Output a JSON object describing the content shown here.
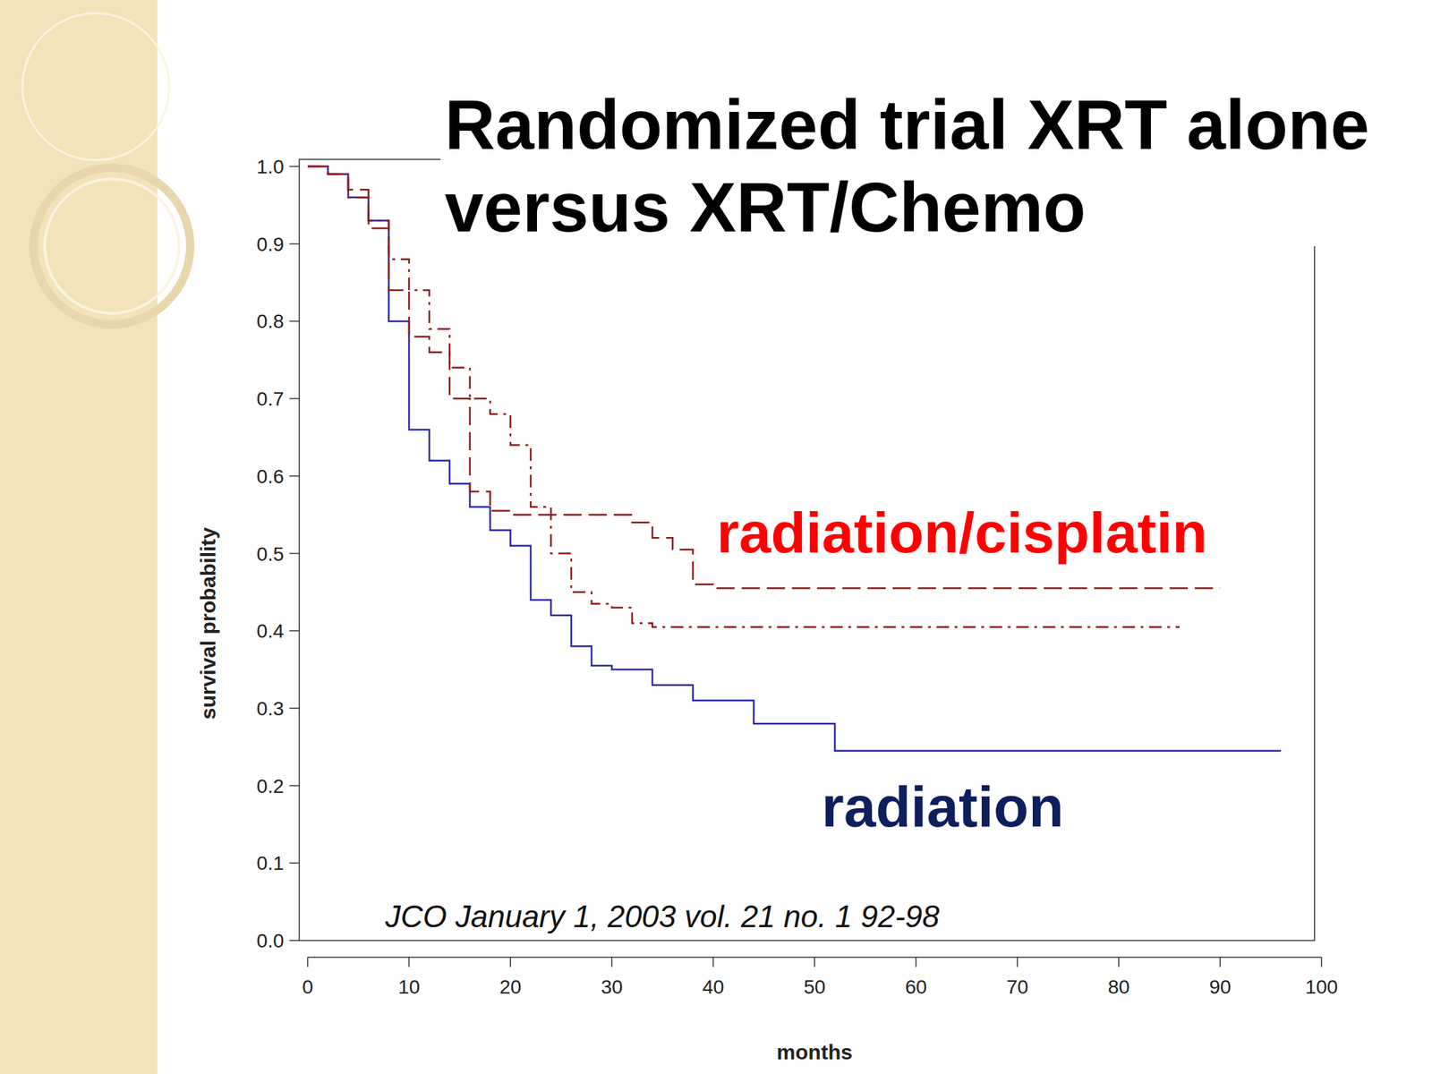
{
  "chart_data": {
    "type": "line",
    "title": "Randomized trial XRT alone versus XRT/Chemo",
    "x_label": "months",
    "y_label": "survival probability",
    "source": "JCO January 1, 2003 vol. 21 no. 1 92-98",
    "annotations": [
      {
        "text": "radiation/cisplatin",
        "color": "#ff0000"
      },
      {
        "text": "radiation",
        "color": "#0d1f5c"
      }
    ],
    "xlim": [
      0,
      100
    ],
    "ylim": [
      0,
      1
    ],
    "xticks": [
      0,
      10,
      20,
      30,
      40,
      50,
      60,
      70,
      80,
      90,
      100
    ],
    "yticks": [
      {
        "value": 0,
        "label": "0.0"
      },
      0.1,
      0.2,
      0.3,
      0.4,
      0.5,
      0.6,
      0.7,
      0.8,
      0.9,
      {
        "value": 1,
        "label": "1.0"
      }
    ],
    "grid": false,
    "x": [
      0,
      2,
      4,
      6,
      8,
      10,
      12,
      14,
      16,
      18,
      20,
      22,
      24,
      26,
      28,
      30,
      32,
      34,
      36,
      38,
      40,
      42,
      44,
      46,
      48,
      50,
      52,
      54,
      56,
      58,
      60,
      62,
      64,
      66,
      68,
      70,
      72,
      74,
      76,
      78,
      80,
      82,
      84,
      86,
      88,
      90,
      92,
      94,
      96
    ],
    "series": [
      {
        "type": "step",
        "color": "#2e2aa8",
        "line_style": "solid",
        "values": [
          1.0,
          0.99,
          0.96,
          0.93,
          0.8,
          0.66,
          0.62,
          0.59,
          0.56,
          0.53,
          0.51,
          0.44,
          0.42,
          0.38,
          0.355,
          0.35,
          0.35,
          0.33,
          0.33,
          0.31,
          0.31,
          0.31,
          0.28,
          0.28,
          0.28,
          0.28,
          0.245,
          0.245,
          0.245,
          0.245,
          0.245,
          0.245,
          0.245,
          0.245,
          0.245,
          0.245,
          0.245,
          0.245,
          0.245,
          0.245,
          0.245,
          0.245,
          0.245,
          0.245,
          0.245,
          0.245,
          0.245,
          0.245,
          0.245
        ]
      },
      {
        "type": "step",
        "color": "#8b1c1c",
        "line_style": "dashed",
        "values": [
          1.0,
          0.99,
          0.97,
          0.92,
          0.84,
          0.78,
          0.76,
          0.7,
          0.58,
          0.555,
          0.55,
          0.55,
          0.55,
          0.55,
          0.55,
          0.55,
          0.54,
          0.52,
          0.505,
          0.46,
          0.455,
          0.455,
          0.455,
          0.455,
          0.455,
          0.455,
          0.455,
          0.455,
          0.455,
          0.455,
          0.455,
          0.455,
          0.455,
          0.455,
          0.455,
          0.455,
          0.455,
          0.455,
          0.455,
          0.455,
          0.455,
          0.455,
          0.455,
          0.455,
          0.455,
          0.455,
          null,
          null,
          null
        ]
      },
      {
        "type": "step",
        "color": "#8b1c1c",
        "line_style": "dashdot",
        "values": [
          1.0,
          0.99,
          0.96,
          0.93,
          0.88,
          0.84,
          0.79,
          0.74,
          0.7,
          0.68,
          0.64,
          0.56,
          0.5,
          0.45,
          0.435,
          0.43,
          0.41,
          0.405,
          0.405,
          0.405,
          0.405,
          0.405,
          0.405,
          0.405,
          0.405,
          0.405,
          0.405,
          0.405,
          0.405,
          0.405,
          0.405,
          0.405,
          0.405,
          0.405,
          0.405,
          0.405,
          0.405,
          0.405,
          0.405,
          0.405,
          0.405,
          0.405,
          0.405,
          0.405,
          null,
          null,
          null,
          null,
          null
        ]
      }
    ]
  }
}
